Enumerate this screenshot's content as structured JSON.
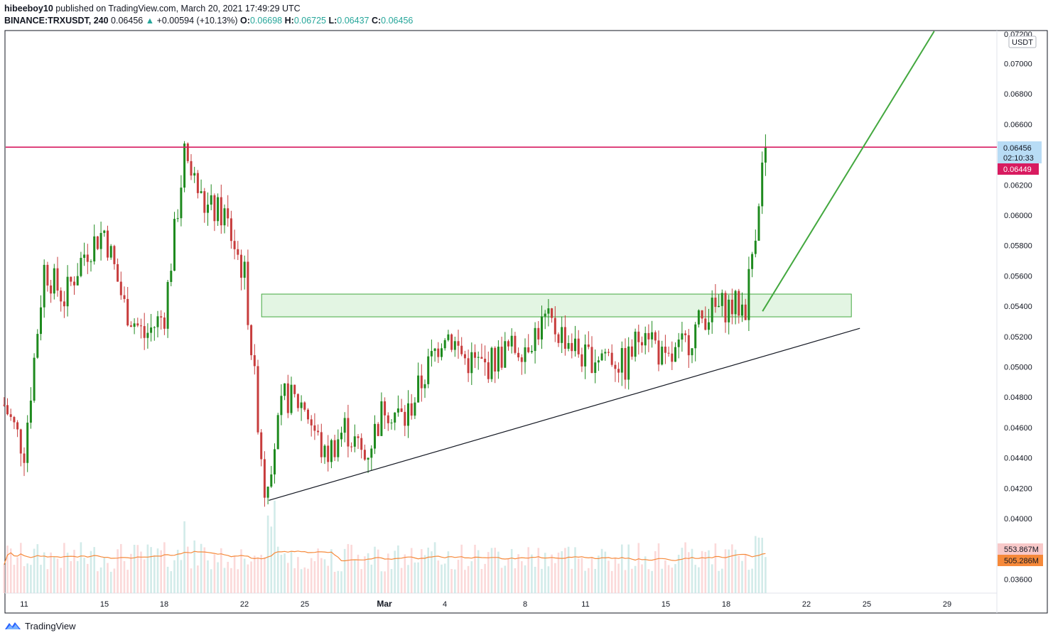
{
  "header": {
    "author": "hibeeboy10",
    "published_text": "published on TradingView.com, March 20, 2021 17:49:29 UTC",
    "symbol": "BINANCE:TRXUSDT, 240",
    "last": "0.06456",
    "change_arrow": "▲",
    "change": "+0.00594 (+10.13%)",
    "o_label": "O:",
    "o_value": "0.06698",
    "h_label": "H:",
    "h_value": "0.06725",
    "l_label": "L:",
    "l_value": "0.06437",
    "c_label": "C:",
    "c_value": "0.06456"
  },
  "price_axis": {
    "currency": "USDT",
    "top_cut_label": "0.07200",
    "ticks": [
      "0.07000",
      "0.06800",
      "0.06600",
      "0.06200",
      "0.06000",
      "0.05800",
      "0.05600",
      "0.05400",
      "0.05200",
      "0.05000",
      "0.04800",
      "0.04600",
      "0.04400",
      "0.04200",
      "0.04000",
      "0.03600"
    ],
    "last_price_tag": "0.06456",
    "countdown_tag": "02:10:33",
    "horizontal_line_tag": "0.06449",
    "volume_tag": "553.867M",
    "volume_ma_tag": "505.286M"
  },
  "time_axis": {
    "labels": [
      "11",
      "15",
      "18",
      "22",
      "25",
      "Mar",
      "4",
      "8",
      "11",
      "15",
      "18",
      "22",
      "25",
      "29"
    ]
  },
  "footer": {
    "brand": "TradingView"
  },
  "colors": {
    "up": "#26a69a",
    "down": "#ef5350",
    "candle_up": "#1e8a1e",
    "candle_down": "#c73c3c",
    "resistance_line": "#d81b60",
    "trend_projection": "#43a83f",
    "support_trendline": "#131722",
    "zone_fill": "#d9f2d9",
    "volume_ma": "#f6893a",
    "last_price_tag": "#b8dcf5"
  },
  "chart_data": {
    "type": "candlestick",
    "timeframe": "240",
    "symbol": "TRXUSDT",
    "x_range": [
      "2021-02-10",
      "2021-03-31"
    ],
    "ylim": [
      0.0355,
      0.0728
    ],
    "last_close": 0.06456,
    "horizontal_line_value": 0.06449,
    "demand_zone": {
      "from": "2021-02-22",
      "to": "2021-03-24",
      "low": 0.0533,
      "high": 0.0548
    },
    "support_trendline": [
      {
        "date": "2021-02-23",
        "price": 0.0412
      },
      {
        "date": "2021-03-24",
        "price": 0.0532
      }
    ],
    "projection_line": [
      {
        "date": "2021-03-19",
        "price": 0.0532
      },
      {
        "date": "2021-03-27",
        "price": 0.0728
      }
    ],
    "close_path": [
      {
        "date": "2021-02-10",
        "price": 0.0475
      },
      {
        "date": "2021-02-11",
        "price": 0.0445
      },
      {
        "date": "2021-02-12",
        "price": 0.0565
      },
      {
        "date": "2021-02-13",
        "price": 0.0545
      },
      {
        "date": "2021-02-14",
        "price": 0.0575
      },
      {
        "date": "2021-02-15",
        "price": 0.059
      },
      {
        "date": "2021-02-16",
        "price": 0.054
      },
      {
        "date": "2021-02-17",
        "price": 0.052
      },
      {
        "date": "2021-02-18",
        "price": 0.0535
      },
      {
        "date": "2021-02-19",
        "price": 0.064
      },
      {
        "date": "2021-02-20",
        "price": 0.0605
      },
      {
        "date": "2021-02-21",
        "price": 0.06
      },
      {
        "date": "2021-02-22",
        "price": 0.056
      },
      {
        "date": "2021-02-23",
        "price": 0.042
      },
      {
        "date": "2021-02-24",
        "price": 0.048
      },
      {
        "date": "2021-02-25",
        "price": 0.0475
      },
      {
        "date": "2021-02-26",
        "price": 0.044
      },
      {
        "date": "2021-02-27",
        "price": 0.046
      },
      {
        "date": "2021-02-28",
        "price": 0.044
      },
      {
        "date": "2021-03-01",
        "price": 0.0475
      },
      {
        "date": "2021-03-02",
        "price": 0.0465
      },
      {
        "date": "2021-03-03",
        "price": 0.0495
      },
      {
        "date": "2021-03-04",
        "price": 0.0525
      },
      {
        "date": "2021-03-05",
        "price": 0.0505
      },
      {
        "date": "2021-03-06",
        "price": 0.05
      },
      {
        "date": "2021-03-07",
        "price": 0.051
      },
      {
        "date": "2021-03-08",
        "price": 0.0515
      },
      {
        "date": "2021-03-09",
        "price": 0.053
      },
      {
        "date": "2021-03-10",
        "price": 0.052
      },
      {
        "date": "2021-03-11",
        "price": 0.0505
      },
      {
        "date": "2021-03-12",
        "price": 0.051
      },
      {
        "date": "2021-03-13",
        "price": 0.05
      },
      {
        "date": "2021-03-14",
        "price": 0.053
      },
      {
        "date": "2021-03-15",
        "price": 0.05
      },
      {
        "date": "2021-03-16",
        "price": 0.0515
      },
      {
        "date": "2021-03-17",
        "price": 0.0535
      },
      {
        "date": "2021-03-18",
        "price": 0.054
      },
      {
        "date": "2021-03-19",
        "price": 0.054
      },
      {
        "date": "2021-03-20",
        "price": 0.06456
      }
    ],
    "volume_last": "553.867M",
    "volume_ma_last": "505.286M"
  }
}
